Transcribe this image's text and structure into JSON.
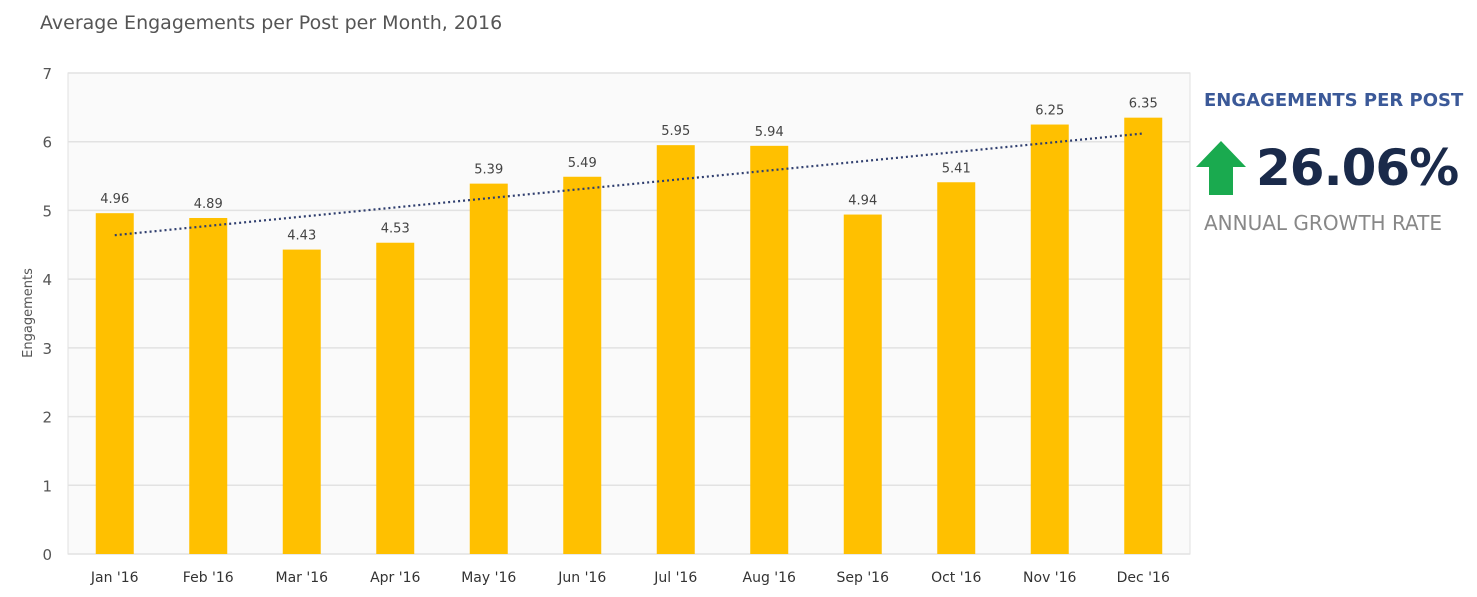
{
  "chart_data": {
    "type": "bar",
    "title": "Average Engagements per Post per Month, 2016",
    "xlabel": "",
    "ylabel": "Engagements",
    "ylim": [
      0,
      7
    ],
    "yticks": [
      0,
      1,
      2,
      3,
      4,
      5,
      6,
      7
    ],
    "grid": true,
    "categories": [
      "Jan '16",
      "Feb '16",
      "Mar '16",
      "Apr '16",
      "May '16",
      "Jun '16",
      "Jul '16",
      "Aug '16",
      "Sep '16",
      "Oct '16",
      "Nov '16",
      "Dec '16"
    ],
    "values": [
      4.96,
      4.89,
      4.43,
      4.53,
      5.39,
      5.49,
      5.95,
      5.94,
      4.94,
      5.41,
      6.25,
      6.35
    ],
    "data_labels": [
      "4.96",
      "4.89",
      "4.43",
      "4.53",
      "5.39",
      "5.49",
      "5.95",
      "5.94",
      "4.94",
      "5.41",
      "6.25",
      "6.35"
    ],
    "trendline": {
      "type": "linear",
      "style": "dotted",
      "start": 4.64,
      "end": 6.12
    },
    "colors": {
      "bar": "#FFC000",
      "trend": "#2f3e6e",
      "plot_bg": "#fafafa",
      "grid": "#e2e2e2"
    }
  },
  "kpi": {
    "heading": "ENGAGEMENTS PER POST",
    "value": "26.06%",
    "direction_icon": "arrow-up-icon",
    "label": "ANNUAL GROWTH RATE",
    "colors": {
      "heading": "#3b5998",
      "value": "#1a2a4a",
      "arrow": "#1aaa4f"
    }
  }
}
